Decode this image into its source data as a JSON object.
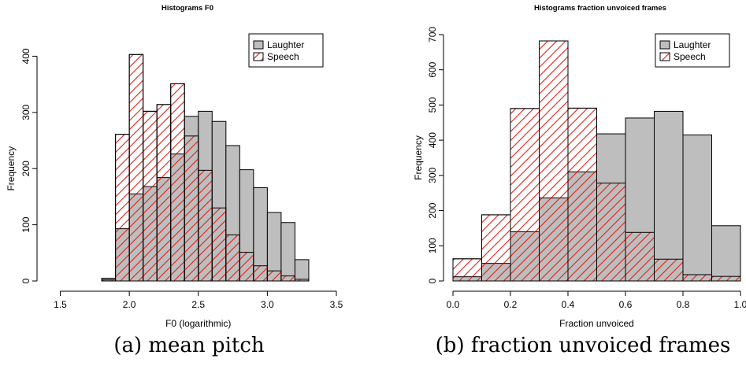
{
  "captions": {
    "a": "(a) mean pitch",
    "b": "(b) fraction unvoiced frames"
  },
  "colors": {
    "laughter_fill": "#bebebe",
    "speech_hatch": "#e0201b",
    "outline": "#000000"
  },
  "chart_data": [
    {
      "type": "bar",
      "subtype": "overlaid-histogram",
      "title": "Histograms F0",
      "xlabel": "F0 (logarithmic)",
      "ylabel": "Frequency",
      "xlim": [
        1.4,
        3.5
      ],
      "ylim": [
        0,
        430
      ],
      "xticks": [
        1.5,
        2.0,
        2.5,
        3.0,
        3.5
      ],
      "xtick_labels": [
        "1.5",
        "2.0",
        "2.5",
        "3.0",
        "3.5"
      ],
      "yticks": [
        0,
        100,
        200,
        300,
        400
      ],
      "ytick_labels": [
        "0",
        "100",
        "200",
        "300",
        "400"
      ],
      "grid": false,
      "legend": "top-right",
      "bin_edges": [
        1.8,
        1.9,
        2.0,
        2.1,
        2.2,
        2.3,
        2.4,
        2.5,
        2.6,
        2.7,
        2.8,
        2.9,
        3.0,
        3.1,
        3.2,
        3.3
      ],
      "series": [
        {
          "name": "Laughter",
          "style": "solid-gray",
          "values": [
            5,
            93,
            155,
            168,
            184,
            226,
            293,
            302,
            284,
            241,
            198,
            166,
            122,
            104,
            38
          ]
        },
        {
          "name": "Speech",
          "style": "red-hatch",
          "values": [
            2,
            261,
            403,
            302,
            314,
            351,
            258,
            197,
            130,
            82,
            51,
            27,
            18,
            9,
            3
          ]
        }
      ]
    },
    {
      "type": "bar",
      "subtype": "overlaid-histogram",
      "title": "Histograms fraction unvoiced frames",
      "xlabel": "Fraction unvoiced",
      "ylabel": "Frequency",
      "xlim": [
        0,
        1.0
      ],
      "ylim": [
        0,
        720
      ],
      "xticks": [
        0,
        0.2,
        0.4,
        0.6,
        0.8,
        1.0
      ],
      "xtick_labels": [
        "0.0",
        "0.2",
        "0.4",
        "0.6",
        "0.8",
        "1.0"
      ],
      "yticks": [
        0,
        100,
        200,
        300,
        400,
        500,
        600,
        700
      ],
      "ytick_labels": [
        "0",
        "100",
        "200",
        "300",
        "400",
        "500",
        "600",
        "700"
      ],
      "grid": false,
      "legend": "top-right",
      "bin_edges": [
        0,
        0.1,
        0.2,
        0.3,
        0.4,
        0.5,
        0.6,
        0.7,
        0.8,
        0.9,
        1.0
      ],
      "series": [
        {
          "name": "Laughter",
          "style": "solid-gray",
          "values": [
            12,
            50,
            140,
            236,
            310,
            418,
            463,
            482,
            415,
            157
          ]
        },
        {
          "name": "Speech",
          "style": "red-hatch",
          "values": [
            63,
            188,
            490,
            682,
            491,
            278,
            138,
            62,
            18,
            13
          ]
        }
      ]
    }
  ]
}
